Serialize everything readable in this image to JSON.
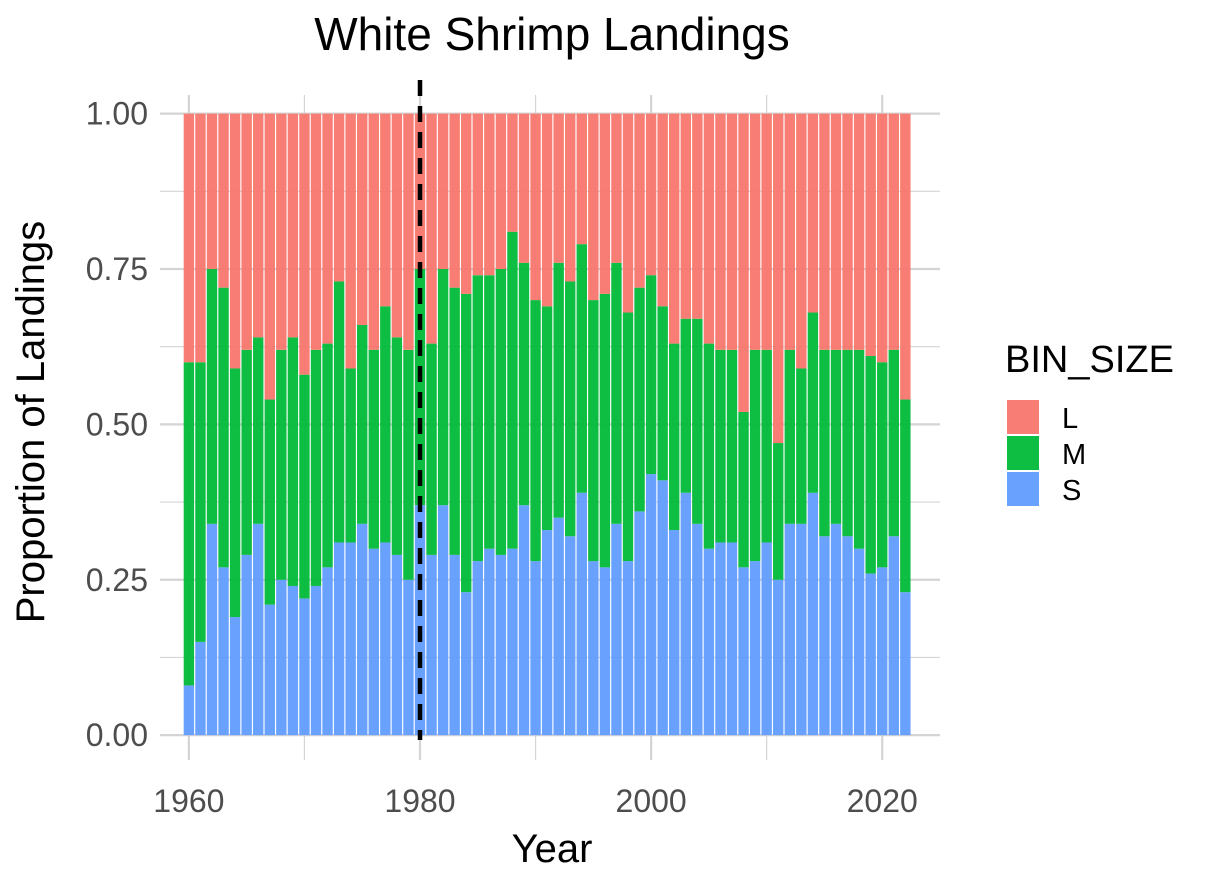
{
  "chart_data": {
    "type": "bar",
    "stacked": true,
    "title": "White Shrimp Landings",
    "xlabel": "Year",
    "ylabel": "Proportion of Landings",
    "x": [
      1960,
      1961,
      1962,
      1963,
      1964,
      1965,
      1966,
      1967,
      1968,
      1969,
      1970,
      1971,
      1972,
      1973,
      1974,
      1975,
      1976,
      1977,
      1978,
      1979,
      1980,
      1981,
      1982,
      1983,
      1984,
      1985,
      1986,
      1987,
      1988,
      1989,
      1990,
      1991,
      1992,
      1993,
      1994,
      1995,
      1996,
      1997,
      1998,
      1999,
      2000,
      2001,
      2002,
      2003,
      2004,
      2005,
      2006,
      2007,
      2008,
      2009,
      2010,
      2011,
      2012,
      2013,
      2014,
      2015,
      2016,
      2017,
      2018,
      2019,
      2020,
      2021,
      2022
    ],
    "xlim": [
      1957.5,
      2025
    ],
    "ylim": [
      -0.04,
      1.03
    ],
    "x_ticks": [
      1960,
      1980,
      2000,
      2020
    ],
    "x_tick_labels": [
      "1960",
      "1980",
      "2000",
      "2020"
    ],
    "y_ticks": [
      0,
      0.25,
      0.5,
      0.75,
      1.0
    ],
    "y_tick_labels": [
      "0.00",
      "0.25",
      "0.50",
      "0.75",
      "1.00"
    ],
    "series": [
      {
        "name": "S",
        "color": "#619CFF",
        "values": [
          0.08,
          0.15,
          0.34,
          0.27,
          0.19,
          0.29,
          0.34,
          0.21,
          0.25,
          0.24,
          0.22,
          0.24,
          0.27,
          0.31,
          0.31,
          0.34,
          0.3,
          0.31,
          0.29,
          0.25,
          0.37,
          0.29,
          0.37,
          0.29,
          0.23,
          0.28,
          0.3,
          0.29,
          0.3,
          0.37,
          0.28,
          0.33,
          0.35,
          0.32,
          0.39,
          0.28,
          0.27,
          0.34,
          0.28,
          0.36,
          0.42,
          0.41,
          0.33,
          0.39,
          0.34,
          0.3,
          0.31,
          0.31,
          0.27,
          0.28,
          0.31,
          0.25,
          0.34,
          0.34,
          0.39,
          0.32,
          0.34,
          0.32,
          0.3,
          0.26,
          0.27,
          0.32,
          0.23
        ]
      },
      {
        "name": "M",
        "color": "#00BA38",
        "values": [
          0.52,
          0.45,
          0.41,
          0.45,
          0.4,
          0.33,
          0.3,
          0.33,
          0.37,
          0.4,
          0.36,
          0.38,
          0.36,
          0.42,
          0.28,
          0.32,
          0.32,
          0.38,
          0.35,
          0.37,
          0.38,
          0.34,
          0.38,
          0.43,
          0.48,
          0.46,
          0.44,
          0.46,
          0.51,
          0.39,
          0.42,
          0.36,
          0.41,
          0.41,
          0.4,
          0.42,
          0.44,
          0.42,
          0.4,
          0.36,
          0.32,
          0.28,
          0.3,
          0.28,
          0.33,
          0.33,
          0.31,
          0.31,
          0.25,
          0.34,
          0.31,
          0.22,
          0.28,
          0.25,
          0.29,
          0.3,
          0.28,
          0.3,
          0.32,
          0.35,
          0.33,
          0.3,
          0.31
        ]
      },
      {
        "name": "L",
        "color": "#F8766D",
        "values": [
          0.4,
          0.4,
          0.25,
          0.28,
          0.41,
          0.38,
          0.36,
          0.46,
          0.38,
          0.36,
          0.42,
          0.38,
          0.37,
          0.27,
          0.41,
          0.34,
          0.38,
          0.31,
          0.36,
          0.38,
          0.25,
          0.37,
          0.25,
          0.28,
          0.29,
          0.26,
          0.26,
          0.25,
          0.19,
          0.24,
          0.3,
          0.31,
          0.24,
          0.27,
          0.21,
          0.3,
          0.29,
          0.24,
          0.32,
          0.28,
          0.26,
          0.31,
          0.37,
          0.33,
          0.33,
          0.37,
          0.38,
          0.38,
          0.48,
          0.38,
          0.38,
          0.53,
          0.38,
          0.41,
          0.32,
          0.38,
          0.38,
          0.38,
          0.38,
          0.39,
          0.4,
          0.38,
          0.46
        ]
      }
    ],
    "reference_line": {
      "x": 1980,
      "style": "dashed",
      "color": "#000000"
    },
    "grid": true,
    "legend": {
      "title": "BIN_SIZE",
      "position": "right",
      "entries": [
        "L",
        "M",
        "S"
      ]
    }
  }
}
